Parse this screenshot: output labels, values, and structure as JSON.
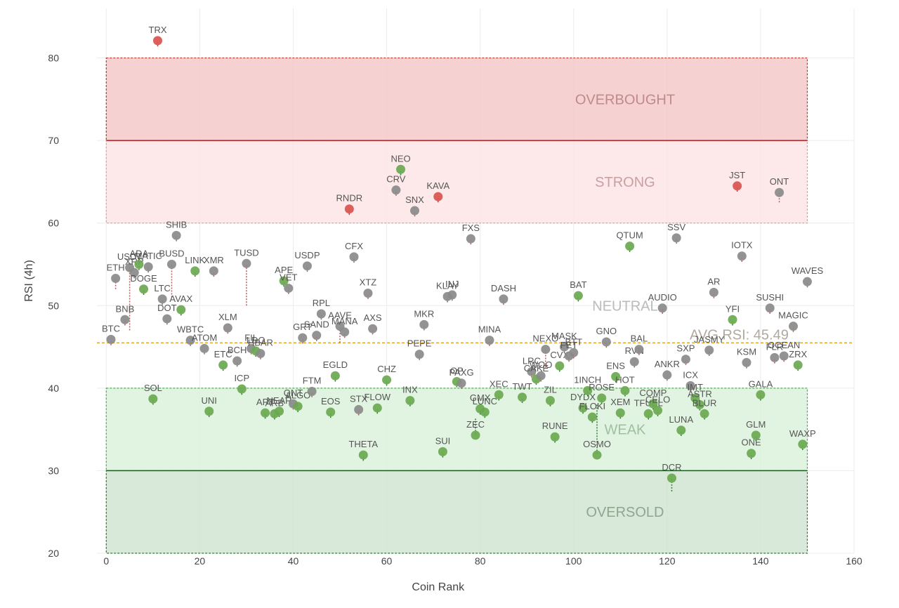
{
  "chart_data": {
    "type": "scatter",
    "xlabel": "Coin Rank",
    "ylabel": "RSI (4h)",
    "xlim": [
      -2,
      160
    ],
    "ylim": [
      20,
      86
    ],
    "x_ticks": [
      0,
      20,
      40,
      60,
      80,
      100,
      120,
      140,
      160
    ],
    "y_ticks": [
      20,
      30,
      40,
      50,
      60,
      70,
      80
    ],
    "grid": true,
    "zones": [
      {
        "label": "OVERBOUGHT",
        "y0": 70,
        "y1": 80,
        "fill": "#f4c6c6",
        "border": "#c0392b",
        "label_color": "#c08a8a"
      },
      {
        "label": "STRONG",
        "y0": 60,
        "y1": 70,
        "fill": "#fde3e3",
        "border": "#e59a9a",
        "label_color": "#c9a0a0"
      },
      {
        "label": "NEUTRAL",
        "y0": 40,
        "y1": 60,
        "fill": "none",
        "border": "none",
        "label_color": "#bbbbbb"
      },
      {
        "label": "WEAK",
        "y0": 30,
        "y1": 40,
        "fill": "#d9f1d9",
        "border": "#4caf50",
        "label_color": "#9fbf9f"
      },
      {
        "label": "OVERSOLD",
        "y0": 20,
        "y1": 30,
        "fill": "#cfe3cf",
        "border": "#2e7d32",
        "label_color": "#8fa58f"
      }
    ],
    "zone_x_range": [
      0,
      150
    ],
    "avg_rsi": 45.49,
    "avg_label": "AVG RSI: 45.49",
    "colors": {
      "up": "#6aa84f",
      "down": "#d9534f",
      "neutral": "#8a8a8a"
    },
    "points": [
      {
        "name": "BTC",
        "x": 1,
        "y": 45.9,
        "c": "neutral"
      },
      {
        "name": "ETH",
        "x": 2,
        "y": 53.3,
        "c": "neutral",
        "p": 52
      },
      {
        "name": "USDT",
        "x": 5,
        "y": 54.6,
        "c": "neutral",
        "p": 47
      },
      {
        "name": "BNB",
        "x": 4,
        "y": 48.3,
        "c": "neutral"
      },
      {
        "name": "XRP",
        "x": 6,
        "y": 54.0,
        "c": "neutral"
      },
      {
        "name": "ADA",
        "x": 7,
        "y": 55.0,
        "c": "up"
      },
      {
        "name": "DOGE",
        "x": 8,
        "y": 52.0,
        "c": "up"
      },
      {
        "name": "MATIC",
        "x": 9,
        "y": 54.7,
        "c": "neutral"
      },
      {
        "name": "SOL",
        "x": 10,
        "y": 38.7,
        "c": "up"
      },
      {
        "name": "TRX",
        "x": 11,
        "y": 82.1,
        "c": "down"
      },
      {
        "name": "LTC",
        "x": 12,
        "y": 50.8,
        "c": "neutral"
      },
      {
        "name": "DOT",
        "x": 13,
        "y": 48.4,
        "c": "neutral"
      },
      {
        "name": "BUSD",
        "x": 14,
        "y": 55.0,
        "c": "neutral",
        "p": 51
      },
      {
        "name": "SHIB",
        "x": 15,
        "y": 58.5,
        "c": "neutral"
      },
      {
        "name": "AVAX",
        "x": 16,
        "y": 49.5,
        "c": "up"
      },
      {
        "name": "WBTC",
        "x": 18,
        "y": 45.8,
        "c": "neutral"
      },
      {
        "name": "LINK",
        "x": 19,
        "y": 54.2,
        "c": "up"
      },
      {
        "name": "ATOM",
        "x": 21,
        "y": 44.8,
        "c": "neutral"
      },
      {
        "name": "UNI",
        "x": 22,
        "y": 37.2,
        "c": "up"
      },
      {
        "name": "XMR",
        "x": 23,
        "y": 54.2,
        "c": "neutral"
      },
      {
        "name": "ETC",
        "x": 25,
        "y": 42.8,
        "c": "up"
      },
      {
        "name": "XLM",
        "x": 26,
        "y": 47.3,
        "c": "neutral"
      },
      {
        "name": "BCH",
        "x": 28,
        "y": 43.3,
        "c": "neutral"
      },
      {
        "name": "ICP",
        "x": 29,
        "y": 39.9,
        "c": "up"
      },
      {
        "name": "TUSD",
        "x": 30,
        "y": 55.1,
        "c": "neutral",
        "p": 50
      },
      {
        "name": "FIL",
        "x": 31,
        "y": 44.8,
        "c": "neutral"
      },
      {
        "name": "LDO",
        "x": 32,
        "y": 44.5,
        "c": "up"
      },
      {
        "name": "HBAR",
        "x": 33,
        "y": 44.2,
        "c": "neutral"
      },
      {
        "name": "APT",
        "x": 34,
        "y": 37.0,
        "c": "up"
      },
      {
        "name": "ARB",
        "x": 36,
        "y": 36.9,
        "c": "up"
      },
      {
        "name": "NEAR",
        "x": 37,
        "y": 37.2,
        "c": "up"
      },
      {
        "name": "APE",
        "x": 38,
        "y": 53.0,
        "c": "up"
      },
      {
        "name": "VET",
        "x": 39,
        "y": 52.1,
        "c": "neutral"
      },
      {
        "name": "QNT",
        "x": 40,
        "y": 38.1,
        "c": "neutral"
      },
      {
        "name": "ALGO",
        "x": 41,
        "y": 37.8,
        "c": "up"
      },
      {
        "name": "GRT",
        "x": 42,
        "y": 46.1,
        "c": "neutral"
      },
      {
        "name": "USDP",
        "x": 43,
        "y": 54.8,
        "c": "neutral"
      },
      {
        "name": "FTM",
        "x": 44,
        "y": 39.6,
        "c": "neutral"
      },
      {
        "name": "SAND",
        "x": 45,
        "y": 46.4,
        "c": "neutral"
      },
      {
        "name": "RPL",
        "x": 46,
        "y": 49.0,
        "c": "neutral"
      },
      {
        "name": "EOS",
        "x": 48,
        "y": 37.1,
        "c": "up"
      },
      {
        "name": "EGLD",
        "x": 49,
        "y": 41.5,
        "c": "up"
      },
      {
        "name": "AAVE",
        "x": 50,
        "y": 47.5,
        "c": "neutral",
        "p": 45.5
      },
      {
        "name": "MANA",
        "x": 51,
        "y": 46.8,
        "c": "neutral"
      },
      {
        "name": "RNDR",
        "x": 52,
        "y": 61.7,
        "c": "down"
      },
      {
        "name": "CFX",
        "x": 53,
        "y": 55.9,
        "c": "neutral"
      },
      {
        "name": "STX",
        "x": 54,
        "y": 37.4,
        "c": "neutral"
      },
      {
        "name": "THETA",
        "x": 55,
        "y": 31.9,
        "c": "up"
      },
      {
        "name": "XTZ",
        "x": 56,
        "y": 51.5,
        "c": "neutral"
      },
      {
        "name": "AXS",
        "x": 57,
        "y": 47.2,
        "c": "neutral"
      },
      {
        "name": "FLOW",
        "x": 58,
        "y": 37.6,
        "c": "up"
      },
      {
        "name": "CHZ",
        "x": 60,
        "y": 41.0,
        "c": "up"
      },
      {
        "name": "CRV",
        "x": 62,
        "y": 64.0,
        "c": "neutral"
      },
      {
        "name": "NEO",
        "x": 63,
        "y": 66.5,
        "c": "up"
      },
      {
        "name": "SNX",
        "x": 66,
        "y": 61.5,
        "c": "neutral"
      },
      {
        "name": "INX",
        "x": 65,
        "y": 38.5,
        "c": "up"
      },
      {
        "name": "MKR",
        "x": 68,
        "y": 47.7,
        "c": "neutral"
      },
      {
        "name": "PEPE",
        "x": 67,
        "y": 44.1,
        "c": "neutral"
      },
      {
        "name": "KAVA",
        "x": 71,
        "y": 63.2,
        "c": "down"
      },
      {
        "name": "SUI",
        "x": 72,
        "y": 32.3,
        "c": "up"
      },
      {
        "name": "KLAY",
        "x": 73,
        "y": 51.1,
        "c": "neutral"
      },
      {
        "name": "INJ",
        "x": 74,
        "y": 51.3,
        "c": "neutral"
      },
      {
        "name": "OP",
        "x": 75,
        "y": 40.8,
        "c": "up"
      },
      {
        "name": "PAXG",
        "x": 76,
        "y": 40.6,
        "c": "neutral"
      },
      {
        "name": "FXS",
        "x": 78,
        "y": 58.1,
        "c": "neutral"
      },
      {
        "name": "ZEC",
        "x": 79,
        "y": 34.3,
        "c": "up",
        "p": 36.3
      },
      {
        "name": "GMX",
        "x": 80,
        "y": 37.5,
        "c": "up"
      },
      {
        "name": "LUNC",
        "x": 81,
        "y": 37.1,
        "c": "up"
      },
      {
        "name": "MINA",
        "x": 82,
        "y": 45.8,
        "c": "neutral"
      },
      {
        "name": "XEC",
        "x": 84,
        "y": 39.2,
        "c": "up"
      },
      {
        "name": "DASH",
        "x": 85,
        "y": 50.8,
        "c": "neutral"
      },
      {
        "name": "TWT",
        "x": 89,
        "y": 38.9,
        "c": "up"
      },
      {
        "name": "LRC",
        "x": 91,
        "y": 42.0,
        "c": "neutral"
      },
      {
        "name": "CAKE",
        "x": 92,
        "y": 41.1,
        "c": "up"
      },
      {
        "name": "WOO",
        "x": 93,
        "y": 41.5,
        "c": "neutral"
      },
      {
        "name": "NEXO",
        "x": 94,
        "y": 44.7,
        "c": "neutral",
        "p": 42.5
      },
      {
        "name": "ZIL",
        "x": 95,
        "y": 38.5,
        "c": "up"
      },
      {
        "name": "RUNE",
        "x": 96,
        "y": 34.1,
        "c": "up"
      },
      {
        "name": "CVX",
        "x": 97,
        "y": 42.7,
        "c": "up"
      },
      {
        "name": "MASK",
        "x": 98,
        "y": 45.0,
        "c": "neutral"
      },
      {
        "name": "FET",
        "x": 99,
        "y": 43.9,
        "c": "neutral"
      },
      {
        "name": "BTT",
        "x": 100,
        "y": 44.3,
        "c": "neutral"
      },
      {
        "name": "BAT",
        "x": 101,
        "y": 51.2,
        "c": "up"
      },
      {
        "name": "DYDX",
        "x": 102,
        "y": 37.6,
        "c": "up"
      },
      {
        "name": "1INCH",
        "x": 103,
        "y": 39.7,
        "c": "up"
      },
      {
        "name": "FLOKI",
        "x": 104,
        "y": 36.5,
        "c": "up"
      },
      {
        "name": "OSMO",
        "x": 105,
        "y": 31.9,
        "c": "up",
        "p": 38
      },
      {
        "name": "ROSE",
        "x": 106,
        "y": 38.8,
        "c": "up"
      },
      {
        "name": "GNO",
        "x": 107,
        "y": 45.6,
        "c": "neutral"
      },
      {
        "name": "ENS",
        "x": 109,
        "y": 41.4,
        "c": "up"
      },
      {
        "name": "XEM",
        "x": 110,
        "y": 37.0,
        "c": "up"
      },
      {
        "name": "HOT",
        "x": 111,
        "y": 39.7,
        "c": "up"
      },
      {
        "name": "QTUM",
        "x": 112,
        "y": 57.2,
        "c": "up"
      },
      {
        "name": "RVN",
        "x": 113,
        "y": 43.2,
        "c": "neutral"
      },
      {
        "name": "BAL",
        "x": 114,
        "y": 44.7,
        "c": "neutral"
      },
      {
        "name": "TFUEL",
        "x": 116,
        "y": 36.9,
        "c": "up"
      },
      {
        "name": "COMP",
        "x": 117,
        "y": 38.1,
        "c": "up"
      },
      {
        "name": "CELO",
        "x": 118,
        "y": 37.3,
        "c": "up"
      },
      {
        "name": "AUDIO",
        "x": 119,
        "y": 49.7,
        "c": "neutral"
      },
      {
        "name": "ANKR",
        "x": 120,
        "y": 41.6,
        "c": "neutral"
      },
      {
        "name": "DCR",
        "x": 121,
        "y": 29.1,
        "c": "up",
        "p": 27.5
      },
      {
        "name": "SSV",
        "x": 122,
        "y": 58.2,
        "c": "neutral"
      },
      {
        "name": "LUNA",
        "x": 123,
        "y": 34.9,
        "c": "up"
      },
      {
        "name": "SXP",
        "x": 124,
        "y": 43.5,
        "c": "neutral"
      },
      {
        "name": "ICX",
        "x": 125,
        "y": 40.3,
        "c": "neutral"
      },
      {
        "name": "IMT",
        "x": 126,
        "y": 38.8,
        "c": "up"
      },
      {
        "name": "ASTR",
        "x": 127,
        "y": 38.0,
        "c": "up"
      },
      {
        "name": "BLUR",
        "x": 128,
        "y": 36.9,
        "c": "up"
      },
      {
        "name": "JASMY",
        "x": 129,
        "y": 44.6,
        "c": "neutral"
      },
      {
        "name": "AR",
        "x": 130,
        "y": 51.6,
        "c": "neutral"
      },
      {
        "name": "YFI",
        "x": 134,
        "y": 48.3,
        "c": "up"
      },
      {
        "name": "JST",
        "x": 135,
        "y": 64.5,
        "c": "down"
      },
      {
        "name": "IOTX",
        "x": 136,
        "y": 56.0,
        "c": "neutral"
      },
      {
        "name": "KSM",
        "x": 137,
        "y": 43.1,
        "c": "neutral"
      },
      {
        "name": "ONE",
        "x": 138,
        "y": 32.1,
        "c": "up"
      },
      {
        "name": "GLM",
        "x": 139,
        "y": 34.3,
        "c": "up"
      },
      {
        "name": "GALA",
        "x": 140,
        "y": 39.2,
        "c": "up"
      },
      {
        "name": "SUSHI",
        "x": 142,
        "y": 49.7,
        "c": "neutral"
      },
      {
        "name": "FLR",
        "x": 143,
        "y": 43.7,
        "c": "neutral"
      },
      {
        "name": "ONT",
        "x": 144,
        "y": 63.7,
        "c": "neutral",
        "p": 62.5
      },
      {
        "name": "OCEAN",
        "x": 145,
        "y": 43.9,
        "c": "neutral"
      },
      {
        "name": "MAGIC",
        "x": 147,
        "y": 47.5,
        "c": "neutral"
      },
      {
        "name": "ZRX",
        "x": 148,
        "y": 42.8,
        "c": "up"
      },
      {
        "name": "WAXP",
        "x": 149,
        "y": 33.2,
        "c": "up"
      },
      {
        "name": "WAVES",
        "x": 150,
        "y": 52.9,
        "c": "neutral"
      }
    ]
  }
}
